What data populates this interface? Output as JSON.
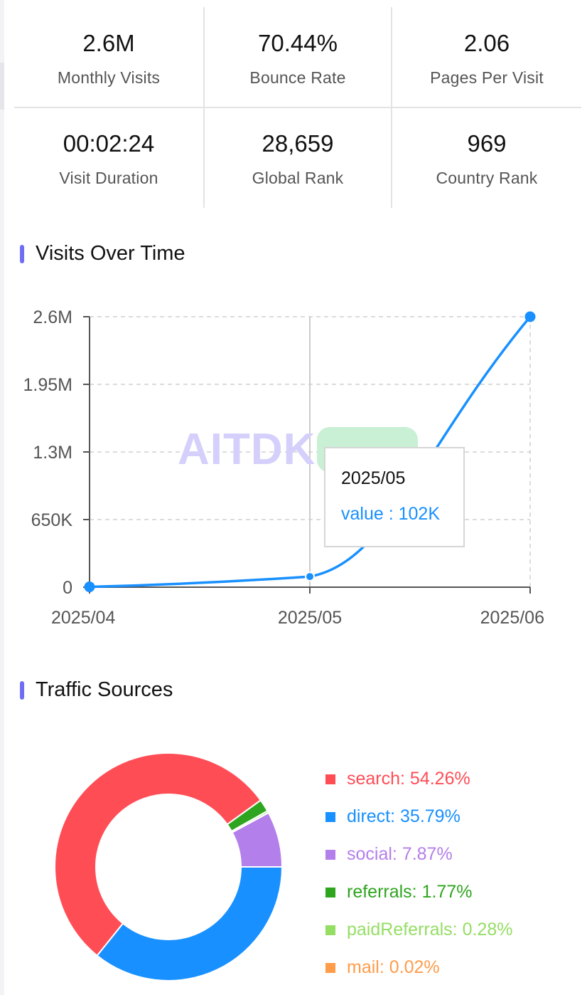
{
  "stats": [
    {
      "value": "2.6M",
      "label": "Monthly Visits"
    },
    {
      "value": "70.44%",
      "label": "Bounce Rate"
    },
    {
      "value": "2.06",
      "label": "Pages Per Visit"
    },
    {
      "value": "00:02:24",
      "label": "Visit Duration"
    },
    {
      "value": "28,659",
      "label": "Global Rank"
    },
    {
      "value": "969",
      "label": "Country Rank"
    }
  ],
  "sections": {
    "visits_title": "Visits Over Time",
    "traffic_title": "Traffic Sources"
  },
  "watermark": "AITDK",
  "tooltip": {
    "date": "2025/05",
    "value_text": "value : 102K"
  },
  "chart_data": [
    {
      "type": "line",
      "title": "Visits Over Time",
      "x": [
        "2025/04",
        "2025/05",
        "2025/06"
      ],
      "series": [
        {
          "values": [
            3000,
            102000,
            2600000
          ]
        }
      ],
      "ylim": [
        0,
        2600000
      ],
      "yticks": [
        0,
        650000,
        1300000,
        1950000,
        2600000
      ],
      "ytick_labels": [
        "0",
        "650K",
        "1.3M",
        "1.95M",
        "2.6M"
      ],
      "grid": true,
      "color": "#1890ff"
    },
    {
      "type": "pie",
      "title": "Traffic Sources",
      "legend_position": "right",
      "slices": [
        {
          "label": "search: 54.26%",
          "value": 54.26,
          "color": "#ff4d56"
        },
        {
          "label": "direct: 35.79%",
          "value": 35.79,
          "color": "#1890ff"
        },
        {
          "label": "social: 7.87%",
          "value": 7.87,
          "color": "#b37feb"
        },
        {
          "label": "referrals: 1.77%",
          "value": 1.77,
          "color": "#2fa51f"
        },
        {
          "label": "paidReferrals: 0.28%",
          "value": 0.28,
          "color": "#95de64"
        },
        {
          "label": "mail: 0.02%",
          "value": 0.02,
          "color": "#ff9c4a"
        }
      ]
    }
  ]
}
